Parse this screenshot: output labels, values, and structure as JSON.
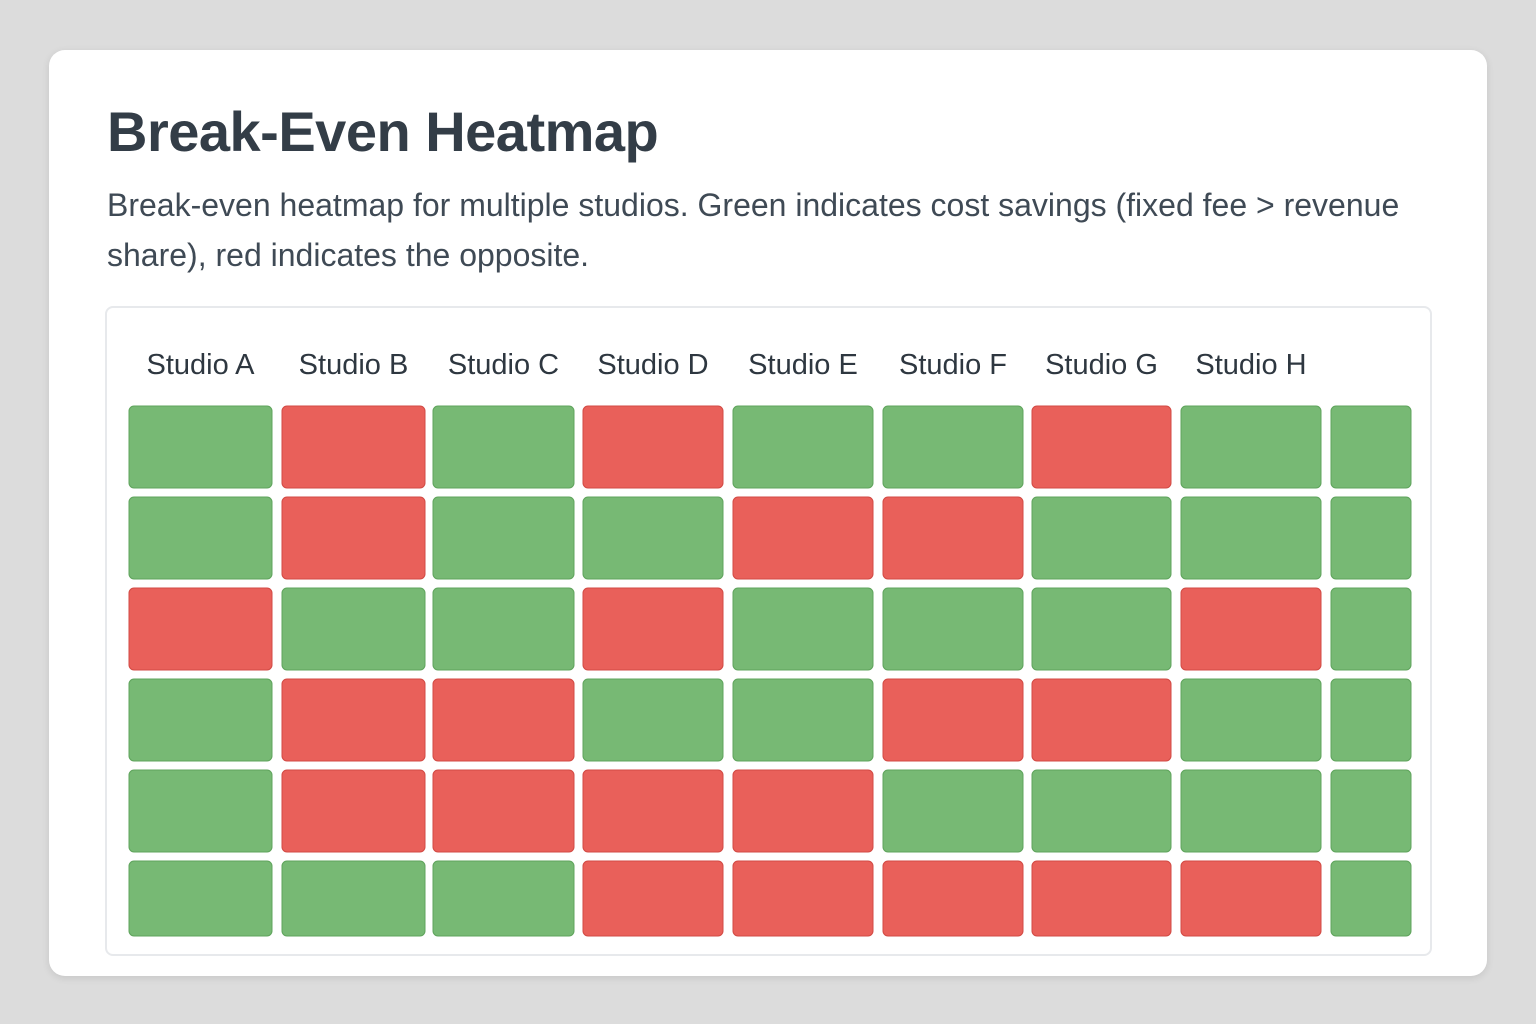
{
  "page": {
    "title": "Break-Even Heatmap",
    "subtitle": "Break-even heatmap for multiple studios. Green indicates cost savings (fixed fee > revenue share), red indicates the opposite."
  },
  "colors": {
    "savings": "#77b974",
    "loss": "#e9605a",
    "savings_border": "#5fa45c",
    "loss_border": "#d24a44"
  },
  "chart_data": {
    "type": "heatmap",
    "title": "Break-Even Heatmap",
    "subtitle": "Break-even heatmap for multiple studios. Green indicates cost savings (fixed fee > revenue share), red indicates the opposite.",
    "columns": [
      "Studio A",
      "Studio B",
      "Studio C",
      "Studio D",
      "Studio E",
      "Studio F",
      "Studio G",
      "Studio H",
      ""
    ],
    "rows": 6,
    "legend": {
      "savings": "Green indicates cost savings (fixed fee > revenue share)",
      "loss": "red indicates the opposite"
    },
    "values": [
      [
        "savings",
        "loss",
        "savings",
        "loss",
        "savings",
        "savings",
        "loss",
        "savings",
        "savings"
      ],
      [
        "savings",
        "loss",
        "savings",
        "savings",
        "loss",
        "loss",
        "savings",
        "savings",
        "savings"
      ],
      [
        "loss",
        "savings",
        "savings",
        "loss",
        "savings",
        "savings",
        "savings",
        "loss",
        "savings"
      ],
      [
        "savings",
        "loss",
        "loss",
        "savings",
        "savings",
        "loss",
        "loss",
        "savings",
        "savings"
      ],
      [
        "savings",
        "loss",
        "loss",
        "loss",
        "loss",
        "savings",
        "savings",
        "savings",
        "savings"
      ],
      [
        "savings",
        "savings",
        "savings",
        "loss",
        "loss",
        "loss",
        "loss",
        "loss",
        "savings"
      ]
    ]
  }
}
